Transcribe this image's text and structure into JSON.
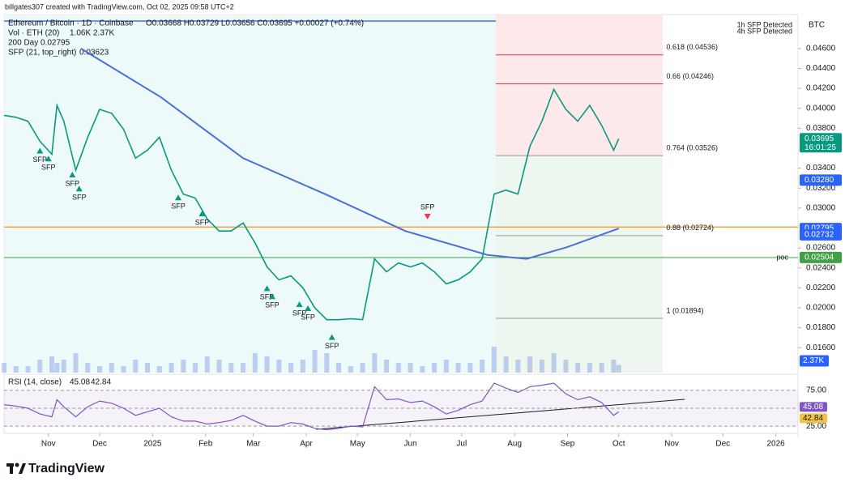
{
  "header": {
    "credit": "billgates307 created with TradingView.com, Oct 02, 2025 09:58 UTC+2"
  },
  "footer": {
    "logo": "TradingView"
  },
  "chart_data": {
    "type": "line",
    "title": "Ethereum / Bitcoin · 1D · Coinbase",
    "ohlc_text": "O0.03668 H0.03729 L0.03656 C0.03695 +0.00027 (+0.74%)",
    "currency": "BTC",
    "alerts": [
      "1h SFP Detected",
      "4h SFP Detected"
    ],
    "grid": false,
    "xlim": [
      5,
      470
    ],
    "xticks": [
      {
        "value": 31,
        "label": "Nov"
      },
      {
        "value": 61,
        "label": "Dec"
      },
      {
        "value": 92,
        "label": "2025"
      },
      {
        "value": 123,
        "label": "Feb"
      },
      {
        "value": 151,
        "label": "Mar"
      },
      {
        "value": 182,
        "label": "Apr"
      },
      {
        "value": 212,
        "label": "May"
      },
      {
        "value": 243,
        "label": "Jun"
      },
      {
        "value": 273,
        "label": "Jul"
      },
      {
        "value": 304,
        "label": "Aug"
      },
      {
        "value": 335,
        "label": "Sep"
      },
      {
        "value": 365,
        "label": "Oct"
      },
      {
        "value": 396,
        "label": "Nov"
      },
      {
        "value": 426,
        "label": "Dec"
      },
      {
        "value": 457,
        "label": "2026"
      }
    ],
    "ylim": [
      0.0135,
      0.0494
    ],
    "yticks": [
      {
        "value": 0.016,
        "label": "0.01600"
      },
      {
        "value": 0.018,
        "label": "0.01800"
      },
      {
        "value": 0.02,
        "label": "0.02000"
      },
      {
        "value": 0.022,
        "label": "0.02200"
      },
      {
        "value": 0.024,
        "label": "0.02400"
      },
      {
        "value": 0.026,
        "label": "0.02600"
      },
      {
        "value": 0.03,
        "label": "0.03000"
      },
      {
        "value": 0.032,
        "label": "0.03200"
      },
      {
        "value": 0.034,
        "label": "0.03400"
      },
      {
        "value": 0.038,
        "label": "0.03800"
      },
      {
        "value": 0.04,
        "label": "0.04000"
      },
      {
        "value": 0.042,
        "label": "0.04200"
      },
      {
        "value": 0.044,
        "label": "0.04400"
      },
      {
        "value": 0.046,
        "label": "0.04600"
      }
    ],
    "x": [
      5,
      12,
      19,
      26,
      33,
      36,
      40,
      47,
      54,
      61,
      68,
      75,
      82,
      89,
      96,
      103,
      110,
      117,
      124,
      131,
      138,
      145,
      152,
      159,
      166,
      173,
      180,
      187,
      194,
      201,
      208,
      215,
      222,
      229,
      236,
      243,
      250,
      257,
      264,
      271,
      278,
      285,
      292,
      299,
      306,
      313,
      320,
      327,
      334,
      341,
      348,
      355,
      362,
      365
    ],
    "price": {
      "color": "#089981",
      "values": [
        0.0393,
        0.0391,
        0.0387,
        0.0367,
        0.0354,
        0.0403,
        0.0387,
        0.0338,
        0.0371,
        0.0399,
        0.0395,
        0.0379,
        0.035,
        0.0358,
        0.0371,
        0.0338,
        0.0314,
        0.031,
        0.0289,
        0.0277,
        0.0277,
        0.0285,
        0.0265,
        0.0241,
        0.0228,
        0.0232,
        0.022,
        0.02,
        0.0188,
        0.0188,
        0.0189,
        0.0188,
        0.0249,
        0.0236,
        0.0245,
        0.0241,
        0.0245,
        0.0236,
        0.0224,
        0.0228,
        0.0236,
        0.0249,
        0.0314,
        0.0318,
        0.0314,
        0.0362,
        0.0387,
        0.0419,
        0.0399,
        0.0387,
        0.0403,
        0.0383,
        0.0358,
        0.03695
      ]
    },
    "countdown": "16:01:25",
    "axis_badges": [
      {
        "value": 0.03695,
        "label": "0.03695",
        "color": "#089981"
      },
      {
        "value": 0.0328,
        "label": "0.03280",
        "color": "#2962ff"
      },
      {
        "value": 0.02795,
        "label": "0.02795",
        "color": "#2962ff"
      },
      {
        "value": 0.02732,
        "label": "0.02732",
        "color": "#2962ff"
      },
      {
        "value": 0.02504,
        "label": "0.02504",
        "color": "#43a047"
      }
    ],
    "fib_x": [
      293,
      391
    ],
    "fib_levels": [
      {
        "value": 0.04536,
        "label": "0.618 (0.04536)",
        "color": "#f23645"
      },
      {
        "value": 0.04246,
        "label": "0.66 (0.04246)",
        "color": "#f23645"
      },
      {
        "value": 0.03526,
        "label": "0.764 (0.03526)",
        "color": "#9598a1"
      },
      {
        "value": 0.02724,
        "label": "0.88 (0.02724)",
        "color": "#9598a1"
      },
      {
        "value": 0.01894,
        "label": "1 (0.01894)",
        "color": "#9598a1"
      }
    ],
    "level_lines": [
      {
        "value": 0.0281,
        "color": "#f7931a"
      },
      {
        "value": 0.02504,
        "color": "#4caf50",
        "label": "poc"
      }
    ],
    "volume": {
      "name": "Vol · ETH (20)",
      "readout": [
        "1.06K",
        "2.37K"
      ],
      "color": "#5b7fe0",
      "ylim": [
        0,
        20
      ],
      "values": [
        3,
        2,
        2,
        4,
        5,
        3,
        4,
        6,
        3,
        2,
        3,
        2,
        4,
        3,
        2,
        3,
        4,
        3,
        5,
        4,
        3,
        3,
        6,
        5,
        4,
        3,
        4,
        7,
        6,
        3,
        2,
        3,
        6,
        4,
        3,
        3,
        2,
        3,
        4,
        3,
        3,
        4,
        8,
        5,
        4,
        5,
        4,
        6,
        4,
        3,
        3,
        3,
        4,
        2.37
      ]
    },
    "ma200": {
      "name": "200 Day",
      "readout": 0.02795,
      "color": "#4a6fd6",
      "x": [
        50,
        97,
        145,
        193,
        240,
        288,
        311,
        335,
        365
      ],
      "values": [
        0.046,
        0.0411,
        0.035,
        0.0314,
        0.0277,
        0.0253,
        0.0249,
        0.0261,
        0.02795
      ]
    },
    "sfp": {
      "name": "SFP (21, top_right)",
      "readout": 0.03623,
      "markers": [
        {
          "text": "SFP",
          "x": 26,
          "y": 0.0358,
          "dir": "up"
        },
        {
          "text": "SFP",
          "x": 31,
          "y": 0.035,
          "dir": "up"
        },
        {
          "text": "SFP",
          "x": 45,
          "y": 0.0334,
          "dir": "up"
        },
        {
          "text": "SFP",
          "x": 49,
          "y": 0.032,
          "dir": "up"
        },
        {
          "text": "SFP",
          "x": 107,
          "y": 0.0311,
          "dir": "up"
        },
        {
          "text": "SFP",
          "x": 121,
          "y": 0.0295,
          "dir": "up"
        },
        {
          "text": "SFP",
          "x": 159,
          "y": 0.022,
          "dir": "up"
        },
        {
          "text": "SFP",
          "x": 162,
          "y": 0.0212,
          "dir": "up"
        },
        {
          "text": "SFP",
          "x": 178,
          "y": 0.0204,
          "dir": "up"
        },
        {
          "text": "SFP",
          "x": 183,
          "y": 0.02,
          "dir": "up"
        },
        {
          "text": "SFP",
          "x": 197,
          "y": 0.0171,
          "dir": "up"
        },
        {
          "text": "SFP",
          "x": 253,
          "y": 0.0291,
          "dir": "down"
        }
      ]
    },
    "rsi": {
      "name": "RSI (14, close)",
      "readout": [
        45.08,
        42.84
      ],
      "color": "#7e57c2",
      "ma_color": "#f5c242",
      "ylim": [
        15,
        94
      ],
      "yticks": [
        {
          "value": 75,
          "label": "75.00"
        },
        {
          "value": 50,
          "label": "50.00"
        },
        {
          "value": 25,
          "label": "25.00"
        }
      ],
      "values": [
        55,
        53,
        50,
        42,
        38,
        62,
        52,
        38,
        52,
        60,
        57,
        50,
        40,
        45,
        50,
        38,
        32,
        32,
        28,
        30,
        33,
        40,
        32,
        25,
        25,
        30,
        28,
        22,
        20,
        22,
        25,
        24,
        80,
        62,
        63,
        58,
        60,
        52,
        42,
        47,
        55,
        60,
        85,
        78,
        72,
        80,
        82,
        85,
        70,
        62,
        66,
        58,
        40,
        45.08
      ]
    }
  }
}
